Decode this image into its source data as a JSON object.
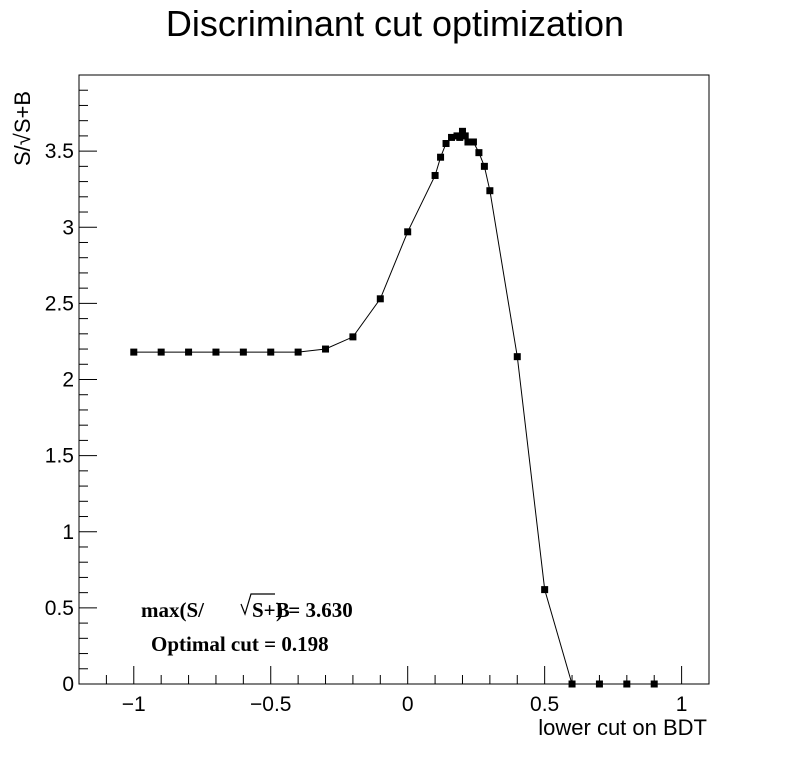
{
  "chart_data": {
    "type": "line",
    "title": "Discriminant cut optimization",
    "xlabel": "lower cut on BDT",
    "ylabel": "S/√S+B",
    "xlim": [
      -1.2,
      1.1
    ],
    "ylim": [
      0,
      4.0
    ],
    "xticks": [
      -1,
      -0.5,
      0,
      0.5,
      1
    ],
    "xtick_labels": [
      "−1",
      "−0.5",
      "0",
      "0.5",
      "1"
    ],
    "yticks": [
      0,
      0.5,
      1,
      1.5,
      2,
      2.5,
      3,
      3.5
    ],
    "ytick_labels": [
      "0",
      "0.5",
      "1",
      "1.5",
      "2",
      "2.5",
      "3",
      "3.5"
    ],
    "grid": false,
    "series": [
      {
        "x": [
          -1.0,
          -0.9,
          -0.8,
          -0.7,
          -0.6,
          -0.5,
          -0.4,
          -0.3,
          -0.2,
          -0.1,
          0.0,
          0.1,
          0.12,
          0.14,
          0.16,
          0.18,
          0.19,
          0.2,
          0.21,
          0.22,
          0.24,
          0.26,
          0.28,
          0.3,
          0.4,
          0.5,
          0.6,
          0.7,
          0.8,
          0.9
        ],
        "y": [
          2.18,
          2.18,
          2.18,
          2.18,
          2.18,
          2.18,
          2.18,
          2.2,
          2.28,
          2.53,
          2.97,
          3.34,
          3.46,
          3.55,
          3.59,
          3.6,
          3.59,
          3.63,
          3.6,
          3.56,
          3.56,
          3.49,
          3.4,
          3.24,
          2.15,
          0.62,
          0.0,
          0.0,
          0.0,
          0.0
        ]
      }
    ],
    "annotations": {
      "max_prefix": "max(S/",
      "max_radicand": "S+B",
      "max_suffix": " ) =  3.630",
      "optimal_cut": "Optimal cut =  0.198"
    }
  }
}
